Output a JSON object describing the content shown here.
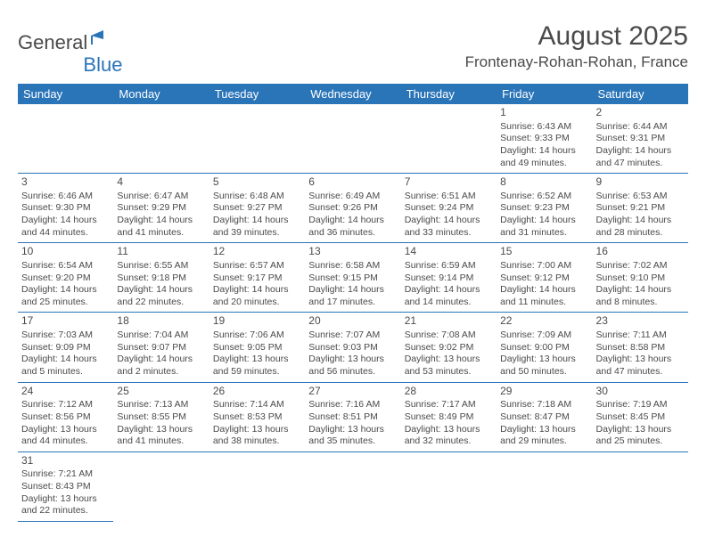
{
  "logo": {
    "text_part1": "General",
    "text_part2": "Blue"
  },
  "header": {
    "month_title": "August 2025",
    "location": "Frontenay-Rohan-Rohan, France"
  },
  "colors": {
    "brand_blue": "#2a74b8",
    "text": "#4a4a4a",
    "bg": "#ffffff"
  },
  "daynames": [
    "Sunday",
    "Monday",
    "Tuesday",
    "Wednesday",
    "Thursday",
    "Friday",
    "Saturday"
  ],
  "weeks": [
    [
      null,
      null,
      null,
      null,
      null,
      {
        "n": "1",
        "sunrise": "Sunrise: 6:43 AM",
        "sunset": "Sunset: 9:33 PM",
        "daylight": "Daylight: 14 hours and 49 minutes."
      },
      {
        "n": "2",
        "sunrise": "Sunrise: 6:44 AM",
        "sunset": "Sunset: 9:31 PM",
        "daylight": "Daylight: 14 hours and 47 minutes."
      }
    ],
    [
      {
        "n": "3",
        "sunrise": "Sunrise: 6:46 AM",
        "sunset": "Sunset: 9:30 PM",
        "daylight": "Daylight: 14 hours and 44 minutes."
      },
      {
        "n": "4",
        "sunrise": "Sunrise: 6:47 AM",
        "sunset": "Sunset: 9:29 PM",
        "daylight": "Daylight: 14 hours and 41 minutes."
      },
      {
        "n": "5",
        "sunrise": "Sunrise: 6:48 AM",
        "sunset": "Sunset: 9:27 PM",
        "daylight": "Daylight: 14 hours and 39 minutes."
      },
      {
        "n": "6",
        "sunrise": "Sunrise: 6:49 AM",
        "sunset": "Sunset: 9:26 PM",
        "daylight": "Daylight: 14 hours and 36 minutes."
      },
      {
        "n": "7",
        "sunrise": "Sunrise: 6:51 AM",
        "sunset": "Sunset: 9:24 PM",
        "daylight": "Daylight: 14 hours and 33 minutes."
      },
      {
        "n": "8",
        "sunrise": "Sunrise: 6:52 AM",
        "sunset": "Sunset: 9:23 PM",
        "daylight": "Daylight: 14 hours and 31 minutes."
      },
      {
        "n": "9",
        "sunrise": "Sunrise: 6:53 AM",
        "sunset": "Sunset: 9:21 PM",
        "daylight": "Daylight: 14 hours and 28 minutes."
      }
    ],
    [
      {
        "n": "10",
        "sunrise": "Sunrise: 6:54 AM",
        "sunset": "Sunset: 9:20 PM",
        "daylight": "Daylight: 14 hours and 25 minutes."
      },
      {
        "n": "11",
        "sunrise": "Sunrise: 6:55 AM",
        "sunset": "Sunset: 9:18 PM",
        "daylight": "Daylight: 14 hours and 22 minutes."
      },
      {
        "n": "12",
        "sunrise": "Sunrise: 6:57 AM",
        "sunset": "Sunset: 9:17 PM",
        "daylight": "Daylight: 14 hours and 20 minutes."
      },
      {
        "n": "13",
        "sunrise": "Sunrise: 6:58 AM",
        "sunset": "Sunset: 9:15 PM",
        "daylight": "Daylight: 14 hours and 17 minutes."
      },
      {
        "n": "14",
        "sunrise": "Sunrise: 6:59 AM",
        "sunset": "Sunset: 9:14 PM",
        "daylight": "Daylight: 14 hours and 14 minutes."
      },
      {
        "n": "15",
        "sunrise": "Sunrise: 7:00 AM",
        "sunset": "Sunset: 9:12 PM",
        "daylight": "Daylight: 14 hours and 11 minutes."
      },
      {
        "n": "16",
        "sunrise": "Sunrise: 7:02 AM",
        "sunset": "Sunset: 9:10 PM",
        "daylight": "Daylight: 14 hours and 8 minutes."
      }
    ],
    [
      {
        "n": "17",
        "sunrise": "Sunrise: 7:03 AM",
        "sunset": "Sunset: 9:09 PM",
        "daylight": "Daylight: 14 hours and 5 minutes."
      },
      {
        "n": "18",
        "sunrise": "Sunrise: 7:04 AM",
        "sunset": "Sunset: 9:07 PM",
        "daylight": "Daylight: 14 hours and 2 minutes."
      },
      {
        "n": "19",
        "sunrise": "Sunrise: 7:06 AM",
        "sunset": "Sunset: 9:05 PM",
        "daylight": "Daylight: 13 hours and 59 minutes."
      },
      {
        "n": "20",
        "sunrise": "Sunrise: 7:07 AM",
        "sunset": "Sunset: 9:03 PM",
        "daylight": "Daylight: 13 hours and 56 minutes."
      },
      {
        "n": "21",
        "sunrise": "Sunrise: 7:08 AM",
        "sunset": "Sunset: 9:02 PM",
        "daylight": "Daylight: 13 hours and 53 minutes."
      },
      {
        "n": "22",
        "sunrise": "Sunrise: 7:09 AM",
        "sunset": "Sunset: 9:00 PM",
        "daylight": "Daylight: 13 hours and 50 minutes."
      },
      {
        "n": "23",
        "sunrise": "Sunrise: 7:11 AM",
        "sunset": "Sunset: 8:58 PM",
        "daylight": "Daylight: 13 hours and 47 minutes."
      }
    ],
    [
      {
        "n": "24",
        "sunrise": "Sunrise: 7:12 AM",
        "sunset": "Sunset: 8:56 PM",
        "daylight": "Daylight: 13 hours and 44 minutes."
      },
      {
        "n": "25",
        "sunrise": "Sunrise: 7:13 AM",
        "sunset": "Sunset: 8:55 PM",
        "daylight": "Daylight: 13 hours and 41 minutes."
      },
      {
        "n": "26",
        "sunrise": "Sunrise: 7:14 AM",
        "sunset": "Sunset: 8:53 PM",
        "daylight": "Daylight: 13 hours and 38 minutes."
      },
      {
        "n": "27",
        "sunrise": "Sunrise: 7:16 AM",
        "sunset": "Sunset: 8:51 PM",
        "daylight": "Daylight: 13 hours and 35 minutes."
      },
      {
        "n": "28",
        "sunrise": "Sunrise: 7:17 AM",
        "sunset": "Sunset: 8:49 PM",
        "daylight": "Daylight: 13 hours and 32 minutes."
      },
      {
        "n": "29",
        "sunrise": "Sunrise: 7:18 AM",
        "sunset": "Sunset: 8:47 PM",
        "daylight": "Daylight: 13 hours and 29 minutes."
      },
      {
        "n": "30",
        "sunrise": "Sunrise: 7:19 AM",
        "sunset": "Sunset: 8:45 PM",
        "daylight": "Daylight: 13 hours and 25 minutes."
      }
    ],
    [
      {
        "n": "31",
        "sunrise": "Sunrise: 7:21 AM",
        "sunset": "Sunset: 8:43 PM",
        "daylight": "Daylight: 13 hours and 22 minutes."
      },
      null,
      null,
      null,
      null,
      null,
      null
    ]
  ]
}
